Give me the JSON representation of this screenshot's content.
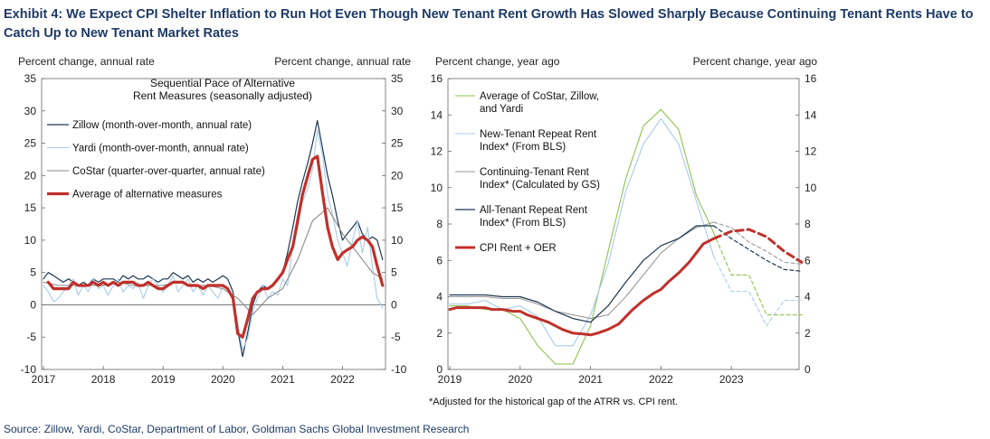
{
  "title": "Exhibit 4: We Expect CPI Shelter Inflation to Run Hot Even Though New Tenant Rent Growth Has Slowed Sharply Because Continuing Tenant Rents Have to Catch Up to New Tenant Market Rates",
  "source": "Source: Zillow, Yardi, CoStar, Department of Labor, Goldman Sachs Global Investment Research",
  "chart_data": [
    {
      "type": "line",
      "subtitle": "Sequential Pace of Alternative\nRent Measures (seasonally adjusted)",
      "ylabel_left": "Percent change, annual rate",
      "ylabel_right": "Percent change, annual rate",
      "ylim": [
        -10,
        35
      ],
      "yticks": [
        -10,
        -5,
        0,
        5,
        10,
        15,
        20,
        25,
        30,
        35
      ],
      "xlim": [
        2017.0,
        2022.75
      ],
      "xticks": [
        "2017",
        "2018",
        "2019",
        "2020",
        "2021",
        "2022"
      ],
      "legend_position": "top-left",
      "series": [
        {
          "name": "Zillow (month-over-month, annual rate)",
          "color": "#1c3650",
          "width": 1.2,
          "dash": "",
          "x": [
            2017.0,
            2017.08,
            2017.17,
            2017.25,
            2017.33,
            2017.42,
            2017.5,
            2017.58,
            2017.67,
            2017.75,
            2017.83,
            2017.92,
            2018.0,
            2018.08,
            2018.17,
            2018.25,
            2018.33,
            2018.42,
            2018.5,
            2018.58,
            2018.67,
            2018.75,
            2018.83,
            2018.92,
            2019.0,
            2019.08,
            2019.17,
            2019.25,
            2019.33,
            2019.42,
            2019.5,
            2019.58,
            2019.67,
            2019.75,
            2019.83,
            2019.92,
            2020.0,
            2020.08,
            2020.17,
            2020.25,
            2020.33,
            2020.42,
            2020.5,
            2020.58,
            2020.67,
            2020.75,
            2020.83,
            2020.92,
            2021.0,
            2021.08,
            2021.17,
            2021.25,
            2021.33,
            2021.42,
            2021.5,
            2021.58,
            2021.67,
            2021.75,
            2021.83,
            2021.92,
            2022.0,
            2022.08,
            2022.17,
            2022.25,
            2022.33,
            2022.42,
            2022.5,
            2022.58,
            2022.67
          ],
          "values": [
            4,
            5,
            4.5,
            4,
            3.5,
            4,
            3.5,
            3,
            3.5,
            3,
            4,
            3.5,
            4,
            4,
            4,
            3.5,
            4.5,
            4,
            4.5,
            4,
            4,
            4.5,
            4,
            3.5,
            4,
            4,
            5,
            4.5,
            4,
            4.5,
            3.5,
            4,
            3.5,
            4,
            3.5,
            4,
            4.5,
            4,
            2,
            -4,
            -8,
            -4,
            0,
            2,
            3,
            2.5,
            3,
            4,
            5,
            8,
            12,
            16,
            19,
            22,
            25,
            28.5,
            24,
            20,
            17,
            13,
            10,
            11,
            12,
            13,
            11,
            10,
            10.5,
            10,
            7
          ]
        },
        {
          "name": "Yardi (month-over-month, annual rate)",
          "color": "#a9cbea",
          "width": 1.1,
          "dash": "",
          "x": [
            2017.0,
            2017.08,
            2017.17,
            2017.25,
            2017.33,
            2017.42,
            2017.5,
            2017.58,
            2017.67,
            2017.75,
            2017.83,
            2017.92,
            2018.0,
            2018.08,
            2018.17,
            2018.25,
            2018.33,
            2018.42,
            2018.5,
            2018.58,
            2018.67,
            2018.75,
            2018.83,
            2018.92,
            2019.0,
            2019.08,
            2019.17,
            2019.25,
            2019.33,
            2019.42,
            2019.5,
            2019.58,
            2019.67,
            2019.75,
            2019.83,
            2019.92,
            2020.0,
            2020.08,
            2020.17,
            2020.25,
            2020.33,
            2020.42,
            2020.5,
            2020.58,
            2020.67,
            2020.75,
            2020.83,
            2020.92,
            2021.0,
            2021.08,
            2021.17,
            2021.25,
            2021.33,
            2021.42,
            2021.5,
            2021.58,
            2021.67,
            2021.75,
            2021.83,
            2021.92,
            2022.0,
            2022.08,
            2022.17,
            2022.25,
            2022.33,
            2022.42,
            2022.5,
            2022.58,
            2022.67
          ],
          "values": [
            3,
            2,
            0.5,
            1,
            2,
            3,
            4,
            1.5,
            3,
            2,
            4,
            2.5,
            3,
            1.5,
            3,
            4,
            2,
            3,
            2.5,
            3.5,
            1,
            3,
            4,
            3,
            2,
            3,
            4.5,
            2,
            3,
            4,
            2,
            3,
            1.5,
            3,
            2,
            1,
            3,
            2.5,
            1,
            -3,
            -7,
            -5,
            -1,
            1,
            3,
            1,
            2,
            1.5,
            4,
            3,
            9,
            12,
            16,
            18,
            21,
            27,
            23,
            17,
            14,
            10,
            8,
            6,
            10,
            13,
            8,
            12,
            6,
            1,
            -0.5
          ]
        },
        {
          "name": "CoStar (quarter-over-quarter, annual rate)",
          "color": "#8a8a8a",
          "width": 1.1,
          "dash": "",
          "x": [
            2017.0,
            2017.25,
            2017.5,
            2017.75,
            2018.0,
            2018.25,
            2018.5,
            2018.75,
            2019.0,
            2019.25,
            2019.5,
            2019.75,
            2020.0,
            2020.25,
            2020.5,
            2020.75,
            2021.0,
            2021.25,
            2021.5,
            2021.75,
            2022.0,
            2022.25,
            2022.5,
            2022.67
          ],
          "values": [
            3.5,
            3,
            3,
            3,
            3,
            3.5,
            3,
            3,
            3,
            3.5,
            3,
            3,
            2.5,
            1,
            -1.5,
            1,
            2.5,
            7,
            13,
            15,
            11,
            8,
            5,
            4
          ]
        },
        {
          "name": "Average of alternative measures",
          "color": "#c0302b",
          "width": 3.2,
          "dash": "",
          "x": [
            2017.08,
            2017.17,
            2017.25,
            2017.33,
            2017.42,
            2017.5,
            2017.58,
            2017.67,
            2017.75,
            2017.83,
            2017.92,
            2018.0,
            2018.08,
            2018.17,
            2018.25,
            2018.33,
            2018.42,
            2018.5,
            2018.58,
            2018.67,
            2018.75,
            2018.83,
            2018.92,
            2019.0,
            2019.08,
            2019.17,
            2019.25,
            2019.33,
            2019.42,
            2019.5,
            2019.58,
            2019.67,
            2019.75,
            2019.83,
            2019.92,
            2020.0,
            2020.08,
            2020.17,
            2020.25,
            2020.33,
            2020.42,
            2020.5,
            2020.58,
            2020.67,
            2020.75,
            2020.83,
            2020.92,
            2021.0,
            2021.08,
            2021.17,
            2021.25,
            2021.33,
            2021.42,
            2021.5,
            2021.58,
            2021.67,
            2021.75,
            2021.83,
            2021.92,
            2022.0,
            2022.08,
            2022.17,
            2022.25,
            2022.33,
            2022.42,
            2022.5,
            2022.58,
            2022.67
          ],
          "values": [
            3.5,
            2.5,
            2.5,
            2.5,
            2.5,
            3.5,
            3,
            3,
            3,
            3.5,
            3,
            3.5,
            3,
            3.5,
            3,
            3.5,
            3.5,
            3.5,
            3,
            3,
            3.5,
            3,
            2.5,
            2.5,
            3,
            3.5,
            3.5,
            3.5,
            3,
            3,
            3,
            2.5,
            3,
            3,
            3,
            3,
            2.5,
            1,
            -4.5,
            -5,
            -2,
            1,
            2,
            2.5,
            2.5,
            3,
            4,
            5,
            7,
            9,
            13,
            17,
            20,
            22.5,
            23,
            17,
            12,
            9,
            7,
            8,
            8.5,
            9,
            10,
            10.5,
            10,
            9,
            6,
            3
          ]
        }
      ]
    },
    {
      "type": "line",
      "ylabel_left": "Percent change, year ago",
      "ylabel_right": "Percent change, year ago",
      "ylim": [
        0,
        16
      ],
      "yticks": [
        0,
        2,
        4,
        6,
        8,
        10,
        12,
        14,
        16
      ],
      "xlim": [
        2019.0,
        2024.0
      ],
      "xticks": [
        "2019",
        "2020",
        "2021",
        "2022",
        "2023"
      ],
      "legend_position": "top-left",
      "note": "*Adjusted for the historical gap of the ATRR vs. CPI rent.",
      "series": [
        {
          "name": "Average of CoStar, Zillow, and Yardi",
          "color": "#8fc24e",
          "width": 1.1,
          "dash": "",
          "x": [
            2019.0,
            2019.25,
            2019.5,
            2019.75,
            2020.0,
            2020.25,
            2020.5,
            2020.75,
            2021.0,
            2021.25,
            2021.5,
            2021.75,
            2022.0,
            2022.25,
            2022.5,
            2022.75
          ],
          "values": [
            3.5,
            3.5,
            3.3,
            3.3,
            2.8,
            1.3,
            0.3,
            0.3,
            2.4,
            6.5,
            10.5,
            13.4,
            14.3,
            13.2,
            9.6,
            7.5
          ]
        },
        {
          "name": "Average of CoStar, Zillow, and Yardi (forecast)",
          "color": "#8fc24e",
          "width": 1.1,
          "dash": "4,3",
          "x": [
            2022.75,
            2023.0,
            2023.25,
            2023.5,
            2023.75,
            2024.0
          ],
          "values": [
            7.5,
            5.2,
            5.2,
            3.0,
            3.0,
            3.0
          ]
        },
        {
          "name": "New-Tenant Repeat Rent Index* (From BLS)",
          "color": "#a9cbea",
          "width": 1.1,
          "dash": "",
          "x": [
            2019.0,
            2019.25,
            2019.5,
            2019.75,
            2020.0,
            2020.25,
            2020.5,
            2020.75,
            2021.0,
            2021.25,
            2021.5,
            2021.75,
            2022.0,
            2022.25,
            2022.5,
            2022.75
          ],
          "values": [
            3.6,
            3.6,
            3.8,
            3.3,
            3.5,
            2.9,
            1.3,
            1.3,
            3.0,
            5.8,
            9.8,
            12.4,
            13.8,
            12.4,
            9.3,
            6.2
          ]
        },
        {
          "name": "New-Tenant Repeat Rent Index* (From BLS) (forecast)",
          "color": "#a9cbea",
          "width": 1.1,
          "dash": "4,3",
          "x": [
            2022.75,
            2023.0,
            2023.25,
            2023.5,
            2023.75,
            2024.0
          ],
          "values": [
            6.2,
            4.3,
            4.3,
            2.4,
            3.8,
            3.8
          ]
        },
        {
          "name": "Continuing-Tenant Rent Index* (Calculated by GS)",
          "color": "#9a9a9a",
          "width": 1.1,
          "dash": "",
          "x": [
            2019.0,
            2019.25,
            2019.5,
            2019.75,
            2020.0,
            2020.25,
            2020.5,
            2020.75,
            2021.0,
            2021.25,
            2021.5,
            2021.75,
            2022.0,
            2022.25,
            2022.5,
            2022.75
          ],
          "values": [
            4.0,
            4.0,
            4.0,
            3.9,
            3.9,
            3.6,
            3.2,
            3.0,
            2.8,
            3.0,
            4.0,
            5.2,
            6.4,
            7.2,
            7.8,
            8.1
          ]
        },
        {
          "name": "Continuing-Tenant Rent Index* (Calculated by GS) (forecast)",
          "color": "#9a9a9a",
          "width": 1.1,
          "dash": "4,3",
          "x": [
            2022.75,
            2023.0,
            2023.25,
            2023.5,
            2023.75,
            2024.0
          ],
          "values": [
            8.1,
            7.8,
            7.0,
            6.5,
            5.9,
            5.8
          ]
        },
        {
          "name": "All-Tenant Repeat Rent Index* (From BLS)",
          "color": "#1c3650",
          "width": 1.2,
          "dash": "",
          "x": [
            2019.0,
            2019.25,
            2019.5,
            2019.75,
            2020.0,
            2020.25,
            2020.5,
            2020.75,
            2021.0,
            2021.25,
            2021.5,
            2021.75,
            2022.0,
            2022.25,
            2022.5,
            2022.75
          ],
          "values": [
            4.1,
            4.1,
            4.1,
            4.0,
            4.0,
            3.7,
            3.2,
            2.8,
            2.6,
            3.5,
            4.8,
            6.0,
            6.8,
            7.2,
            7.9,
            7.9
          ]
        },
        {
          "name": "All-Tenant Repeat Rent Index* (From BLS) (forecast)",
          "color": "#1c3650",
          "width": 1.2,
          "dash": "4,3",
          "x": [
            2022.75,
            2023.0,
            2023.25,
            2023.5,
            2023.75,
            2024.0
          ],
          "values": [
            7.9,
            7.2,
            6.6,
            6.0,
            5.5,
            5.4
          ]
        },
        {
          "name": "CPI Rent + OER",
          "color": "#c0302b",
          "width": 3.0,
          "dash": "",
          "x": [
            2019.0,
            2019.1,
            2019.25,
            2019.4,
            2019.5,
            2019.6,
            2019.75,
            2019.9,
            2020.0,
            2020.1,
            2020.25,
            2020.4,
            2020.5,
            2020.6,
            2020.75,
            2020.9,
            2021.0,
            2021.1,
            2021.25,
            2021.4,
            2021.5,
            2021.6,
            2021.75,
            2021.9,
            2022.0,
            2022.1,
            2022.25,
            2022.4,
            2022.5,
            2022.6,
            2022.75
          ],
          "values": [
            3.3,
            3.4,
            3.4,
            3.4,
            3.4,
            3.3,
            3.3,
            3.2,
            3.2,
            3.0,
            2.8,
            2.6,
            2.4,
            2.2,
            2.0,
            1.95,
            1.9,
            2.0,
            2.2,
            2.5,
            2.9,
            3.3,
            3.8,
            4.2,
            4.4,
            4.8,
            5.3,
            5.9,
            6.4,
            6.9,
            7.2
          ]
        },
        {
          "name": "CPI Rent + OER (forecast)",
          "color": "#c0302b",
          "width": 3.0,
          "dash": "8,5",
          "x": [
            2022.75,
            2023.0,
            2023.25,
            2023.5,
            2023.75,
            2024.0
          ],
          "values": [
            7.2,
            7.6,
            7.7,
            7.3,
            6.5,
            5.9
          ]
        }
      ],
      "legend": [
        {
          "label": "Average of CoStar, Zillow,\nand Yardi",
          "color": "#8fc24e",
          "width": 1.1
        },
        {
          "label": "New-Tenant Repeat Rent\nIndex* (From BLS)",
          "color": "#a9cbea",
          "width": 1.1
        },
        {
          "label": "Continuing-Tenant Rent\nIndex* (Calculated by GS)",
          "color": "#9a9a9a",
          "width": 1.1
        },
        {
          "label": "All-Tenant Repeat Rent\nIndex* (From BLS)",
          "color": "#1c3650",
          "width": 1.2
        },
        {
          "label": "CPI Rent + OER",
          "color": "#c0302b",
          "width": 3.0
        }
      ]
    }
  ]
}
